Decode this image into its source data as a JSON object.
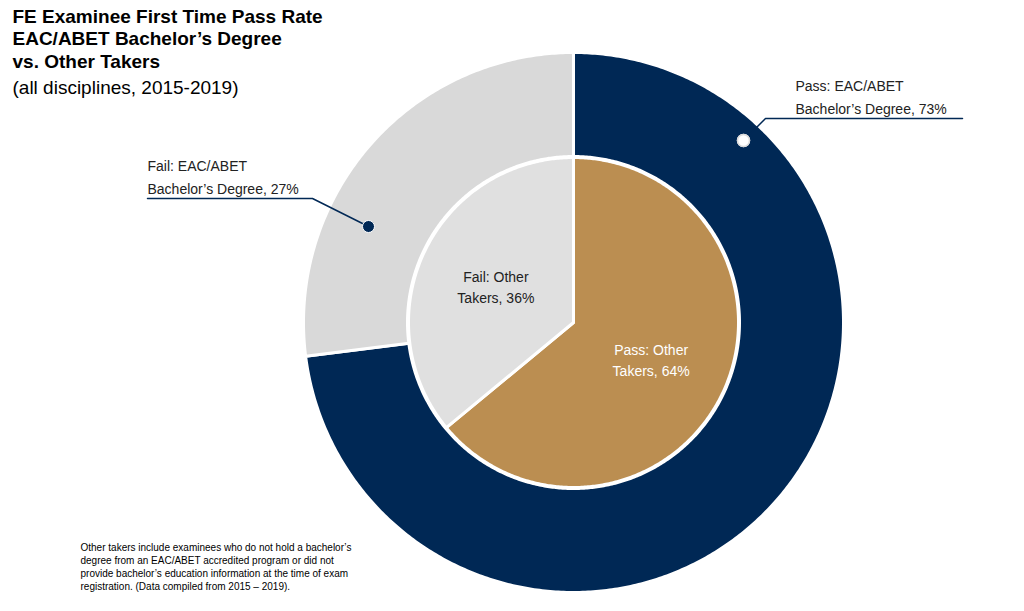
{
  "chart_data": {
    "type": "donut",
    "title": "FE Examinee First Time Pass Rate\nEAC/ABET Bachelor’s Degree\nvs. Other Takers",
    "subtitle": "(all disciplines, 2015-2019)",
    "caption": "Other takers include examinees who do not hold a bachelor’s\ndegree from an EAC/ABET accredited program or did not\nprovide bachelor’s education information at the time of exam\nregistration. (Data compiled from 2015 – 2019).",
    "data_labels": true,
    "series": [
      {
        "values": [
          73,
          27
        ],
        "value_labels": [
          "Pass: EAC/ABET\nBachelor’s Degree, 73%",
          "Fail: EAC/ABET\nBachelor’s Degree, 27%"
        ],
        "colors": [
          "#002855",
          "#d9d9d9"
        ]
      },
      {
        "values": [
          64,
          36
        ],
        "value_labels": [
          "Pass: Other\nTakers, 64%",
          "Fail: Other\nTakers, 36%"
        ],
        "colors": [
          "#bb8e51",
          "#e0e0e0"
        ]
      }
    ]
  }
}
